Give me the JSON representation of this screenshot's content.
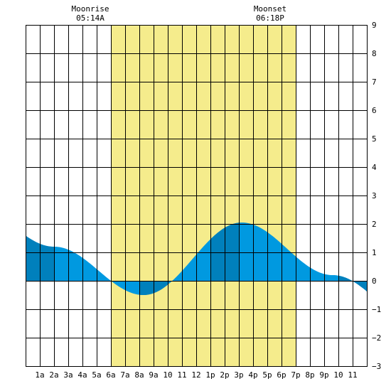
{
  "chart_data": {
    "type": "area",
    "x_tick_labels": [
      "1a",
      "2a",
      "3a",
      "4a",
      "5a",
      "6a",
      "7a",
      "8a",
      "9a",
      "10",
      "11",
      "12",
      "1p",
      "2p",
      "3p",
      "4p",
      "5p",
      "6p",
      "7p",
      "8p",
      "9p",
      "10",
      "11"
    ],
    "xlim": [
      0,
      24
    ],
    "ylim": [
      -3,
      9
    ],
    "y_tick_labels": [
      "9",
      "8",
      "7",
      "6",
      "5",
      "4",
      "3",
      "2",
      "1",
      "0",
      "−1",
      "−2",
      "−3"
    ],
    "y_ticks": [
      9,
      8,
      7,
      6,
      5,
      4,
      3,
      2,
      1,
      0,
      -1,
      -2,
      -3
    ],
    "grid": true,
    "moonrise": {
      "label": "Moonrise",
      "time_label": "05:14A",
      "hour": 6
    },
    "moonset": {
      "label": "Moonset",
      "time_label": "06:18P",
      "hour": 19
    },
    "tide_extremes": [
      {
        "hour": 2.0,
        "value": 1.2,
        "kind": "high"
      },
      {
        "hour": 8.3,
        "value": -0.5,
        "kind": "low"
      },
      {
        "hour": 15.2,
        "value": 2.05,
        "kind": "high"
      },
      {
        "hour": 21.6,
        "value": 0.2,
        "kind": "low"
      }
    ],
    "start_value": 0.9,
    "end_value": 0.6,
    "dark_bands": [
      [
        0,
        2
      ],
      [
        8,
        10
      ],
      [
        13,
        15
      ],
      [
        22,
        24
      ]
    ],
    "colors": {
      "moon_up_background": "#f5ec8c",
      "tide_fill": "#0099e0",
      "tide_fill_dark": "#0080bc",
      "grid": "#000000",
      "border": "#000000",
      "background": "#ffffff"
    }
  }
}
